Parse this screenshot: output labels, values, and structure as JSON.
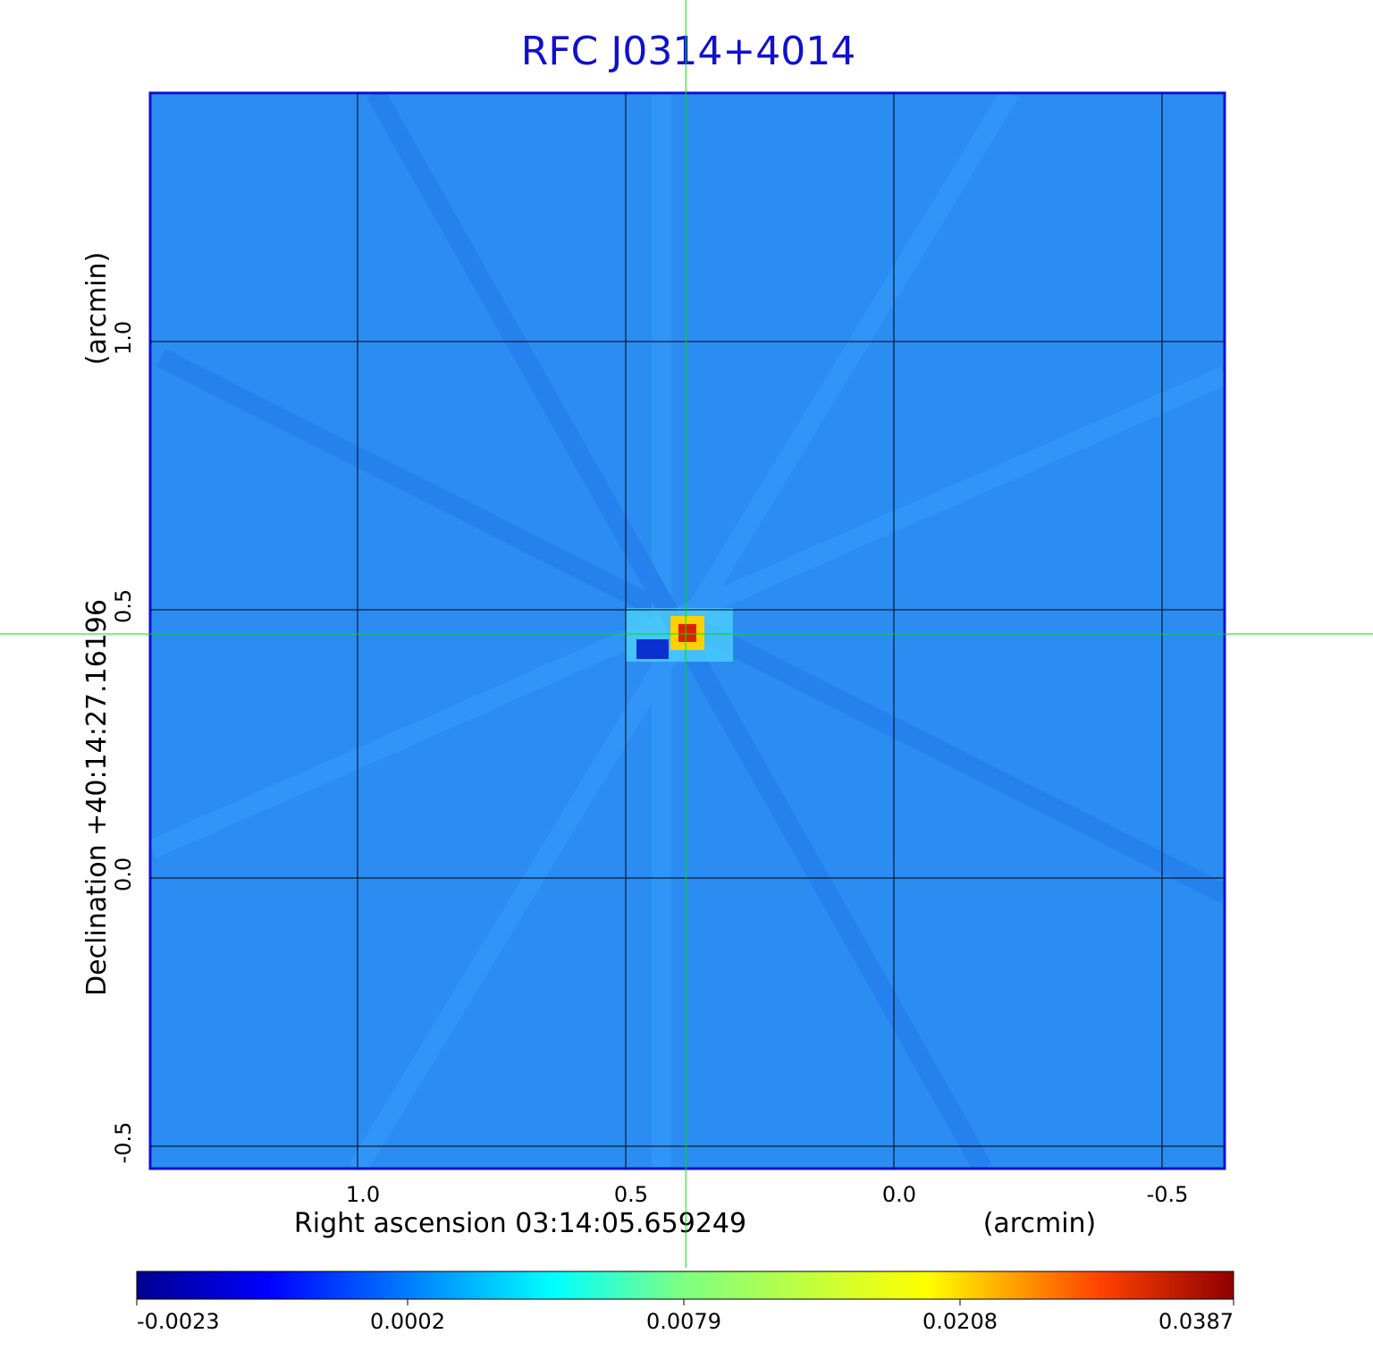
{
  "chart_data": {
    "type": "image",
    "title": "RFC J0314+4014",
    "xlabel": "Right ascension  03:14:05.659249",
    "xunit": "(arcmin)",
    "ylabel": "Declination  +40:14:27.16196",
    "yunit": "(arcmin)",
    "xlim": [
      1.3867,
      -0.6167
    ],
    "ylim": [
      -0.5417,
      1.4633
    ],
    "xticks": [
      {
        "value": 1,
        "label": "1.0"
      },
      0.5,
      {
        "value": 0,
        "label": "0.0"
      },
      -0.5
    ],
    "yticks": [
      -0.5,
      {
        "value": 0,
        "label": "0.0"
      },
      0.5,
      {
        "value": 1,
        "label": "1.0"
      }
    ],
    "grid": true,
    "crosshair": {
      "x": 0.388,
      "y": 0.455,
      "color": "#00e000"
    },
    "frame_color": "#1010d0",
    "colorbar": {
      "scale": "sqrt",
      "clim": [
        -0.0023,
        0.0387
      ],
      "ticks": [
        -0.0023,
        0.0002,
        0.0079,
        0.0208,
        0.0387
      ]
    }
  }
}
